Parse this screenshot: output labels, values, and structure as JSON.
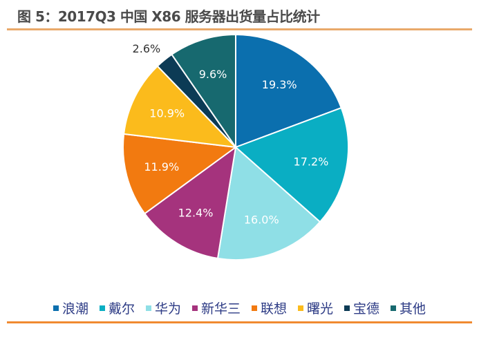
{
  "title": "图 5：2017Q3 中国 X86 服务器出货量占比统计",
  "chart_data": {
    "type": "pie",
    "title": "图 5：2017Q3 中国 X86 服务器出货量占比统计",
    "categories": [
      "浪潮",
      "戴尔",
      "华为",
      "新华三",
      "联想",
      "曙光",
      "宝德",
      "其他"
    ],
    "values": [
      19.3,
      17.2,
      16.0,
      12.4,
      11.9,
      10.9,
      2.6,
      9.6
    ],
    "labels": [
      "19.3%",
      "17.2%",
      "16.0%",
      "12.4%",
      "11.9%",
      "10.9%",
      "2.6%",
      "9.6%"
    ],
    "colors": [
      "#0b6fae",
      "#0aaec3",
      "#8fdfe6",
      "#a5337d",
      "#f27a10",
      "#fbbb1c",
      "#0c3b55",
      "#17696f"
    ],
    "label_colors": [
      "#ffffff",
      "#ffffff",
      "#ffffff",
      "#ffffff",
      "#ffffff",
      "#ffffff",
      "#333333",
      "#ffffff"
    ],
    "start": "top",
    "direction": "clockwise",
    "legend_position": "bottom"
  }
}
